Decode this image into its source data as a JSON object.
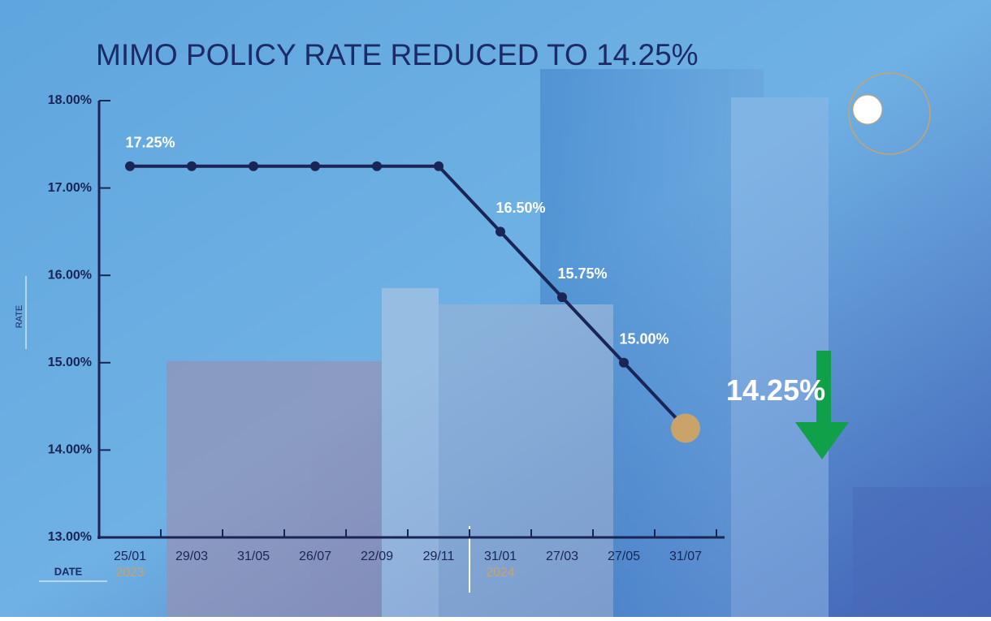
{
  "chart_data": {
    "type": "line",
    "title": "MIMO POLICY RATE REDUCED TO 14.25%",
    "y_label": "RATE",
    "x_label": "DATE",
    "categories": [
      "25/01",
      "29/03",
      "31/05",
      "26/07",
      "22/09",
      "29/11",
      "31/01",
      "27/03",
      "27/05",
      "31/07"
    ],
    "year_labels": [
      "2023",
      null,
      null,
      null,
      null,
      null,
      "2024",
      null,
      null,
      null
    ],
    "values": [
      17.25,
      17.25,
      17.25,
      17.25,
      17.25,
      17.25,
      16.5,
      15.75,
      15.0,
      14.25
    ],
    "value_labels": [
      "17.25%",
      null,
      null,
      null,
      null,
      null,
      "16.50%",
      "15.75%",
      "15.00%",
      "14.25%"
    ],
    "color": "#1a2455",
    "ylim": [
      13,
      18
    ],
    "yticks": [
      {
        "value": 13,
        "label": "13.00%"
      },
      {
        "value": 14,
        "label": "14.00%"
      },
      {
        "value": 15,
        "label": "15.00%"
      },
      {
        "value": 16,
        "label": "16.00%"
      },
      {
        "value": 17,
        "label": "17.00%"
      },
      {
        "value": 18,
        "label": "18.00%"
      }
    ],
    "grid": false
  }
}
